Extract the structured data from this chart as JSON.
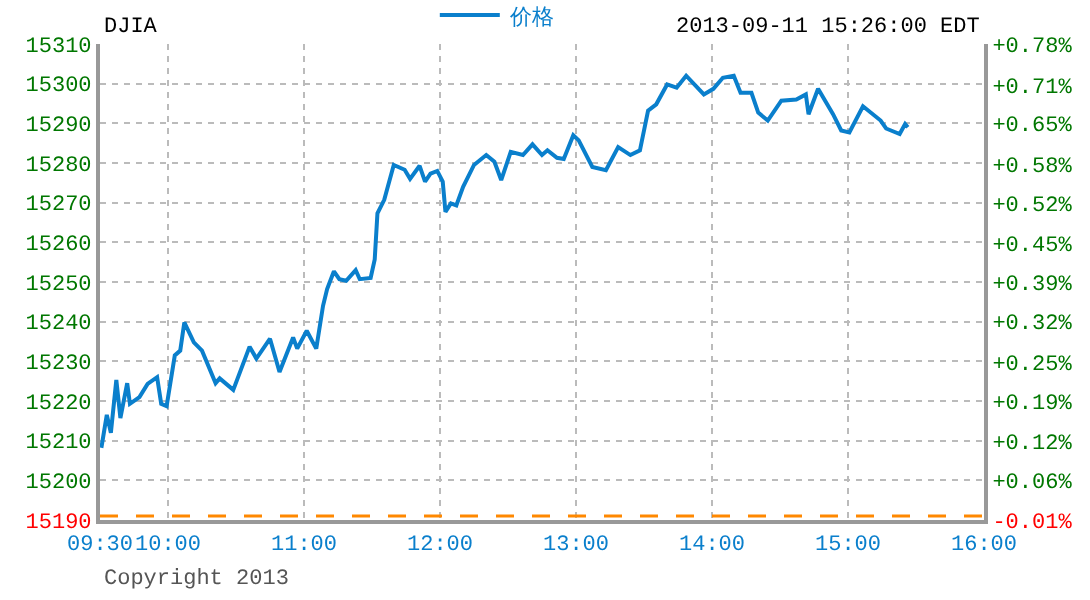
{
  "chart_data": {
    "type": "line",
    "title": "DJIA",
    "subtitle": "2013-09-11 15:26:00 EDT",
    "annotations": [
      "Copyright 2013"
    ],
    "x": [
      9.51,
      9.55,
      9.58,
      9.62,
      9.65,
      9.7,
      9.72,
      9.79,
      9.85,
      9.92,
      9.95,
      9.99,
      10.05,
      10.09,
      10.12,
      10.19,
      10.25,
      10.35,
      10.38,
      10.48,
      10.6,
      10.65,
      10.75,
      10.82,
      10.92,
      10.95,
      11.02,
      11.09,
      11.14,
      11.17,
      11.22,
      11.26,
      11.31,
      11.38,
      11.41,
      11.49,
      11.52,
      11.54,
      11.59,
      11.66,
      11.74,
      11.78,
      11.85,
      11.89,
      11.93,
      11.98,
      12.02,
      12.04,
      12.08,
      12.12,
      12.17,
      12.25,
      12.34,
      12.4,
      12.45,
      12.52,
      12.61,
      12.68,
      12.75,
      12.79,
      12.86,
      12.91,
      12.98,
      13.02,
      13.12,
      13.22,
      13.31,
      13.4,
      13.47,
      13.53,
      13.59,
      13.67,
      13.74,
      13.81,
      13.94,
      14.01,
      14.08,
      14.16,
      14.21,
      14.29,
      14.34,
      14.41,
      14.51,
      14.62,
      14.69,
      14.71,
      14.78,
      14.89,
      14.95,
      15.01,
      15.11,
      15.24,
      15.28,
      15.38,
      15.42,
      15.44
    ],
    "series": [
      {
        "name": "价格",
        "color": "#0a7fcc",
        "values": [
          15208.2,
          15216.5,
          15212.0,
          15225.3,
          15215.7,
          15224.5,
          15219.3,
          15221.0,
          15224.3,
          15226.0,
          15219.3,
          15218.7,
          15231.5,
          15232.7,
          15239.8,
          15234.8,
          15232.7,
          15224.5,
          15225.7,
          15222.8,
          15233.7,
          15230.7,
          15235.7,
          15227.3,
          15236.0,
          15233.2,
          15237.7,
          15233.2,
          15244.0,
          15248.2,
          15252.7,
          15250.7,
          15250.3,
          15253.0,
          15250.7,
          15251.0,
          15255.7,
          15267.3,
          15270.7,
          15279.5,
          15278.3,
          15276.0,
          15279.3,
          15275.3,
          15277.3,
          15278.0,
          15275.3,
          15267.7,
          15269.8,
          15269.3,
          15274.0,
          15279.5,
          15282.0,
          15280.3,
          15275.7,
          15282.8,
          15282.0,
          15284.7,
          15282.0,
          15283.2,
          15281.3,
          15281.0,
          15287.0,
          15285.7,
          15279.0,
          15278.2,
          15284.0,
          15282.0,
          15283.2,
          15293.2,
          15294.8,
          15299.8,
          15299.0,
          15302.0,
          15297.3,
          15298.7,
          15301.5,
          15302.0,
          15297.7,
          15297.7,
          15292.7,
          15290.7,
          15295.7,
          15296.0,
          15297.3,
          15292.3,
          15298.7,
          15292.3,
          15288.2,
          15287.7,
          15294.3,
          15290.7,
          15288.7,
          15287.3,
          15289.8,
          15289.0
        ]
      }
    ],
    "xlim": [
      9.5,
      16
    ],
    "xticks": [
      {
        "value": 9.5,
        "label": "09:30"
      },
      {
        "value": 10,
        "label": "10:00"
      },
      {
        "value": 11,
        "label": "11:00"
      },
      {
        "value": 12,
        "label": "12:00"
      },
      {
        "value": 13,
        "label": "13:00"
      },
      {
        "value": 14,
        "label": "14:00"
      },
      {
        "value": 15,
        "label": "15:00"
      },
      {
        "value": 16,
        "label": "16:00"
      }
    ],
    "ylim": [
      15190,
      15310
    ],
    "yticks": [
      15190,
      15200,
      15210,
      15220,
      15230,
      15240,
      15250,
      15260,
      15270,
      15280,
      15290,
      15300,
      15310
    ],
    "y2lim": [
      -0.007,
      0.783
    ],
    "y2ticks": [
      {
        "value": -0.007,
        "label": "-0.01%"
      },
      {
        "value": 0.059,
        "label": "+0.06%"
      },
      {
        "value": 0.124,
        "label": "+0.12%"
      },
      {
        "value": 0.19,
        "label": "+0.19%"
      },
      {
        "value": 0.254,
        "label": "+0.25%"
      },
      {
        "value": 0.322,
        "label": "+0.32%"
      },
      {
        "value": 0.388,
        "label": "+0.39%"
      },
      {
        "value": 0.453,
        "label": "+0.45%"
      },
      {
        "value": 0.519,
        "label": "+0.52%"
      },
      {
        "value": 0.584,
        "label": "+0.58%"
      },
      {
        "value": 0.651,
        "label": "+0.65%"
      },
      {
        "value": 0.714,
        "label": "+0.71%"
      },
      {
        "value": 0.783,
        "label": "+0.78%"
      }
    ],
    "ref_lines": [
      {
        "axis": "y",
        "value": 15191,
        "color": "#ff8800",
        "line_style": "dashed"
      }
    ],
    "grid": true,
    "legend": "top",
    "marker": "none",
    "line_style": "solid"
  }
}
